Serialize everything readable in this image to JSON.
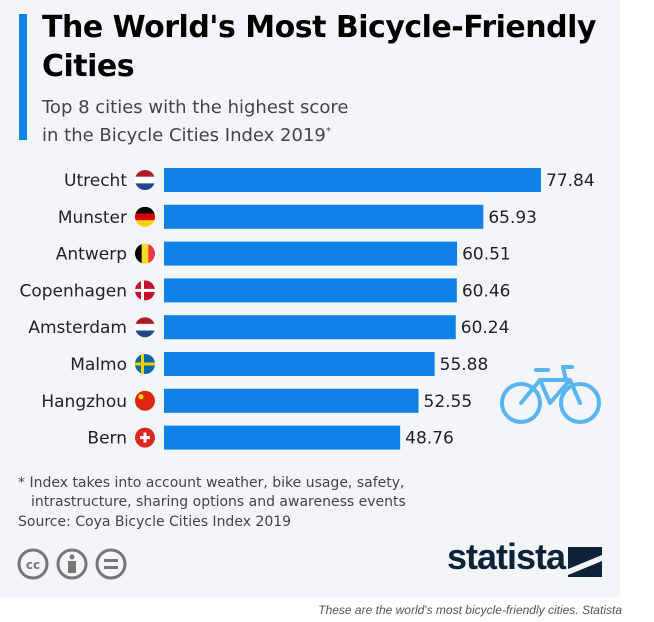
{
  "title": "The World's Most Bicycle-Friendly Cities",
  "subtitle_line1": "Top 8 cities with the highest score",
  "subtitle_line2": "in the Bicycle Cities Index 2019",
  "subtitle_mark": "*",
  "footnote_line1": "* Index takes into account weather, bike usage, safety,",
  "footnote_line2": "intrastructure, sharing options and awareness events",
  "source": "Source: Coya Bicycle Cities Index 2019",
  "brand": "statista",
  "caption": "These are the world's most bicycle-friendly cities. Statista",
  "license_icons": [
    "cc-icon",
    "by-icon",
    "nd-icon"
  ],
  "colors": {
    "bar": "#0f82e6",
    "accent": "#0f82e6",
    "background": "#f3f6f9",
    "bike_icon": "#5ab4f0"
  },
  "chart_data": {
    "type": "bar",
    "orientation": "horizontal",
    "categories": [
      "Utrecht",
      "Munster",
      "Antwerp",
      "Copenhagen",
      "Amsterdam",
      "Malmo",
      "Hangzhou",
      "Bern"
    ],
    "values": [
      77.84,
      65.93,
      60.51,
      60.46,
      60.24,
      55.88,
      52.55,
      48.76
    ],
    "value_labels": [
      "77.84",
      "65.93",
      "60.51",
      "60.46",
      "60.24",
      "55.88",
      "52.55",
      "48.76"
    ],
    "flags": [
      "netherlands",
      "germany",
      "belgium",
      "denmark",
      "netherlands",
      "sweden",
      "china",
      "switzerland"
    ],
    "xlim": [
      0,
      80
    ],
    "grid": false
  }
}
